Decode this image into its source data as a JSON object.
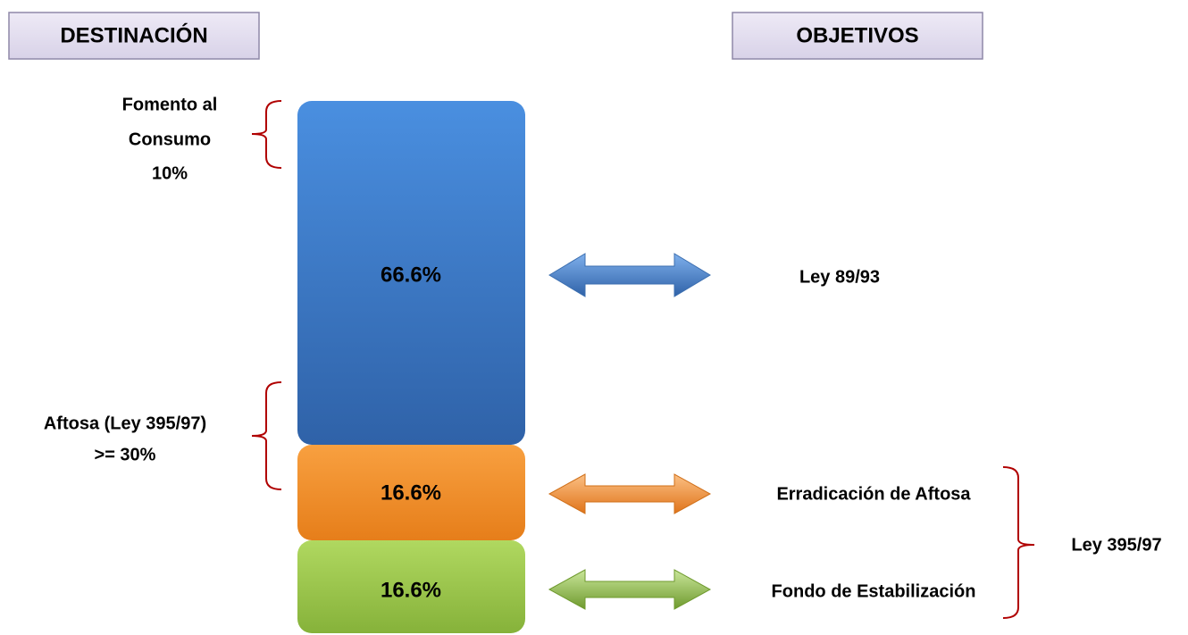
{
  "headers": {
    "left": "DESTINACIÓN",
    "right": "OBJETIVOS"
  },
  "left_labels": [
    {
      "lines": [
        "Fomento al",
        "Consumo",
        "10%"
      ]
    },
    {
      "lines": [
        "Aftosa (Ley 395/97)",
        ">= 30%"
      ]
    }
  ],
  "blocks": [
    {
      "label": "66.6%"
    },
    {
      "label": "16.6%"
    },
    {
      "label": "16.6%"
    }
  ],
  "objectives": [
    "Ley 89/93",
    "Erradicación de Aftosa",
    "Fondo de Estabilización"
  ],
  "group_label": "Ley 395/97"
}
